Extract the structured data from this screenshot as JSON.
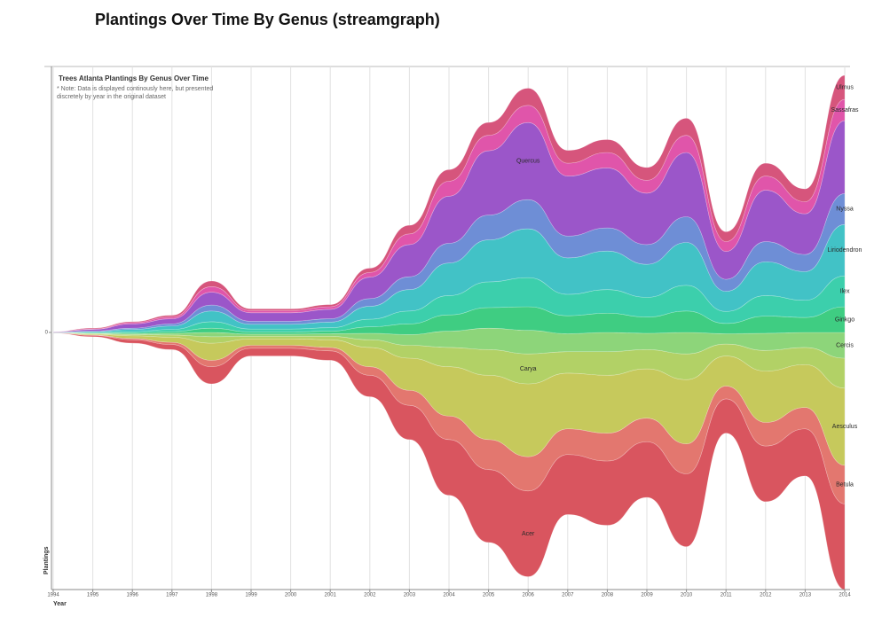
{
  "chart_data": {
    "type": "streamgraph",
    "title": "Plantings Over Time By Genus (streamgraph)",
    "subtitle": "Trees Atlanta Plantings By Genus Over Time",
    "note": "* Note: Data is displayed continously here, but presented discretely by year in the original dataset",
    "xlabel": "Year",
    "ylabel": "Plantings",
    "x": [
      1994,
      1995,
      1996,
      1997,
      1998,
      1999,
      2000,
      2001,
      2002,
      2003,
      2004,
      2005,
      2006,
      2007,
      2008,
      2009,
      2010,
      2011,
      2012,
      2013,
      2014
    ],
    "xlim": [
      1994,
      2014
    ],
    "xticks": [
      1994,
      1995,
      1996,
      1997,
      1998,
      1999,
      2000,
      2001,
      2002,
      2003,
      2004,
      2005,
      2006,
      2007,
      2008,
      2009,
      2010,
      2011,
      2012,
      2013,
      2014
    ],
    "ylim": [
      -600,
      600
    ],
    "yticks": [
      0
    ],
    "grid": true,
    "series": [
      {
        "name": "Acer",
        "color": "#d9555f",
        "values": [
          1,
          3,
          8,
          12,
          40,
          18,
          18,
          22,
          50,
          80,
          130,
          170,
          200,
          140,
          150,
          130,
          170,
          80,
          130,
          110,
          200
        ]
      },
      {
        "name": "Betula",
        "color": "#e3776f",
        "values": [
          0,
          1,
          3,
          5,
          15,
          7,
          7,
          8,
          20,
          35,
          55,
          70,
          80,
          60,
          65,
          55,
          70,
          30,
          55,
          50,
          90
        ]
      },
      {
        "name": "Aesculus",
        "color": "#c6c95c",
        "values": [
          0,
          2,
          6,
          12,
          40,
          15,
          15,
          18,
          45,
          75,
          115,
          150,
          170,
          130,
          135,
          115,
          150,
          70,
          120,
          100,
          180
        ]
      },
      {
        "name": "Carya",
        "color": "#b2d166",
        "values": [
          0,
          1,
          3,
          5,
          15,
          6,
          6,
          8,
          18,
          30,
          45,
          60,
          70,
          50,
          55,
          45,
          60,
          28,
          48,
          40,
          70
        ]
      },
      {
        "name": "Cercis",
        "color": "#8dd57a",
        "values": [
          0,
          1,
          2,
          4,
          10,
          5,
          5,
          6,
          15,
          25,
          38,
          50,
          55,
          42,
          45,
          38,
          50,
          24,
          40,
          35,
          60
        ]
      },
      {
        "name": "Ginkgo",
        "color": "#3fcd82",
        "values": [
          0,
          1,
          2,
          4,
          10,
          5,
          5,
          6,
          15,
          25,
          38,
          48,
          55,
          42,
          45,
          38,
          50,
          24,
          40,
          35,
          60
        ]
      },
      {
        "name": "Ilex",
        "color": "#3ccfac",
        "values": [
          0,
          1,
          3,
          5,
          15,
          7,
          7,
          8,
          18,
          30,
          45,
          60,
          68,
          50,
          55,
          46,
          60,
          28,
          48,
          40,
          72
        ]
      },
      {
        "name": "Liriodendron",
        "color": "#42c2c6",
        "values": [
          1,
          2,
          5,
          8,
          25,
          11,
          11,
          13,
          30,
          50,
          76,
          98,
          114,
          85,
          90,
          77,
          100,
          47,
          79,
          67,
          120
        ]
      },
      {
        "name": "Nyssa",
        "color": "#6e8ed6",
        "values": [
          0,
          1,
          3,
          5,
          14,
          7,
          7,
          8,
          18,
          30,
          46,
          58,
          68,
          51,
          54,
          46,
          60,
          28,
          47,
          40,
          72
        ]
      },
      {
        "name": "Quercus",
        "color": "#9b56c9",
        "values": [
          1,
          4,
          10,
          12,
          30,
          20,
          20,
          22,
          50,
          75,
          110,
          150,
          180,
          140,
          140,
          120,
          150,
          65,
          120,
          95,
          170
        ]
      },
      {
        "name": "Sassafras",
        "color": "#e055aa",
        "values": [
          0,
          1,
          3,
          4,
          13,
          5,
          5,
          6,
          11,
          25,
          35,
          36,
          40,
          30,
          36,
          30,
          40,
          23,
          33,
          28,
          50
        ]
      },
      {
        "name": "Ulmus",
        "color": "#d6557c",
        "values": [
          0,
          2,
          2,
          4,
          13,
          4,
          4,
          5,
          10,
          20,
          27,
          30,
          40,
          30,
          30,
          30,
          40,
          23,
          30,
          30,
          56
        ]
      }
    ]
  }
}
